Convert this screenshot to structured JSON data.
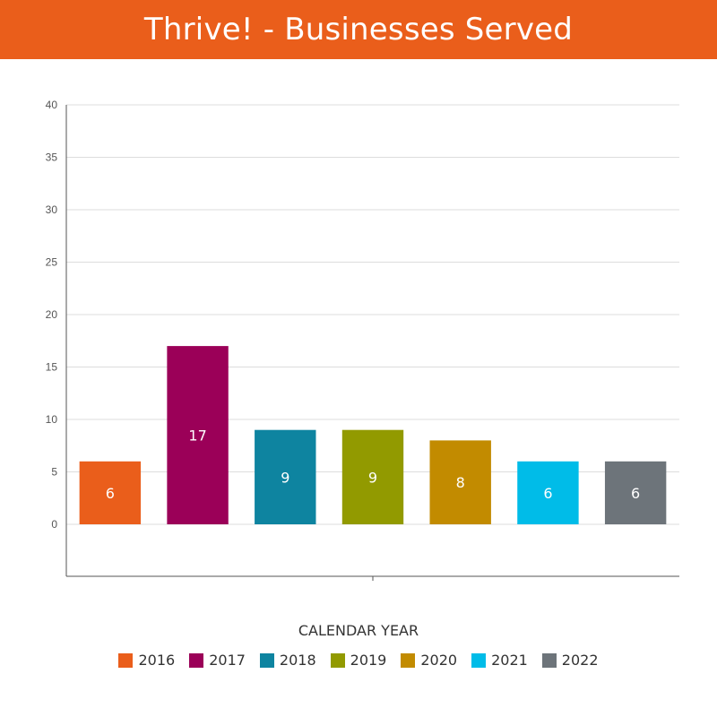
{
  "title": "Thrive! - Businesses Served",
  "chart_data": {
    "type": "bar",
    "categories": [
      "2016",
      "2017",
      "2018",
      "2019",
      "2020",
      "2021",
      "2022"
    ],
    "values": [
      6,
      17,
      9,
      9,
      8,
      6,
      6
    ],
    "colors": [
      "#ea5e1b",
      "#9b0058",
      "#0e84a0",
      "#929a00",
      "#c28b00",
      "#00bce8",
      "#6d747a"
    ],
    "xlabel": "CALENDAR YEAR",
    "ylabel": "",
    "ylim": [
      0,
      40
    ],
    "yticks": [
      0,
      5,
      10,
      15,
      20,
      25,
      30,
      35,
      40
    ],
    "grid": true,
    "legend_position": "bottom",
    "data_labels": true
  },
  "colors": {
    "header": "#ea5e1b",
    "grid": "#dddddd",
    "axis": "#555555"
  }
}
